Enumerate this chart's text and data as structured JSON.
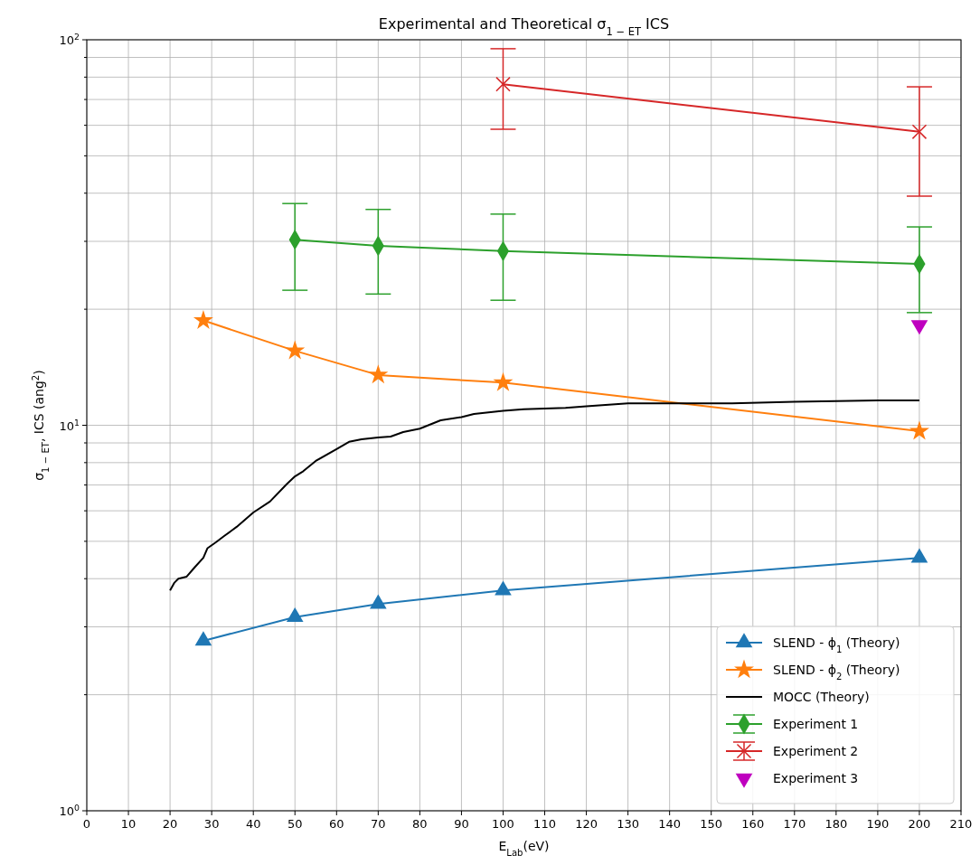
{
  "chart_data": {
    "type": "line",
    "title": "Experimental and Theoretical σ$_{1 − ET}$ ICS",
    "xlabel": "E$_{Lab}$(eV)",
    "ylabel": "σ$_{1 − ET}$, ICS (ang$^{2}$)",
    "log": "y",
    "grid": true,
    "legend": "bottom right",
    "line_style": "solid",
    "xlim": [
      0,
      210
    ],
    "xticks": [
      0,
      10,
      20,
      30,
      40,
      50,
      60,
      70,
      80,
      90,
      100,
      110,
      120,
      130,
      140,
      150,
      160,
      170,
      180,
      190,
      200,
      210
    ],
    "ylim": [
      1,
      100
    ],
    "yticks": [
      {
        "value": 1,
        "label": "10$^{0}$"
      },
      {
        "value": 2,
        "label": null
      },
      {
        "value": 3,
        "label": null
      },
      {
        "value": 4,
        "label": null
      },
      {
        "value": 5,
        "label": null
      },
      {
        "value": 6,
        "label": null
      },
      {
        "value": 7,
        "label": null
      },
      {
        "value": 8,
        "label": null
      },
      {
        "value": 9,
        "label": null
      },
      {
        "value": 10,
        "label": "10$^{1}$"
      },
      {
        "value": 20,
        "label": null
      },
      {
        "value": 30,
        "label": null
      },
      {
        "value": 40,
        "label": null
      },
      {
        "value": 50,
        "label": null
      },
      {
        "value": 60,
        "label": null
      },
      {
        "value": 70,
        "label": null
      },
      {
        "value": 80,
        "label": null
      },
      {
        "value": 90,
        "label": null
      },
      {
        "value": 100,
        "label": "10$^{2}$"
      }
    ],
    "series": [
      {
        "name": "SLEND - ϕ$_{1}$ (Theory)",
        "color": "#1f77b4",
        "marker": "triangle",
        "x": [
          28,
          50,
          70,
          100,
          200
        ],
        "values": [
          2.76,
          3.18,
          3.44,
          3.73,
          4.53
        ]
      },
      {
        "name": "SLEND - ϕ$_{2}$ (Theory)",
        "color": "#ff7f0e",
        "marker": "star",
        "x": [
          28,
          50,
          70,
          100,
          200
        ],
        "values": [
          18.7,
          15.6,
          13.5,
          12.9,
          9.65
        ]
      },
      {
        "name": "MOCC (Theory)",
        "color": "#000000",
        "marker": "none",
        "x": [
          20,
          21,
          22,
          24,
          26,
          28,
          29,
          31,
          33,
          36,
          40,
          44,
          48,
          50,
          52,
          55,
          60,
          63,
          66,
          70,
          73,
          76,
          80,
          85,
          90,
          93,
          100,
          105,
          115,
          120,
          130,
          140,
          155,
          170,
          190,
          200
        ],
        "values": [
          3.73,
          3.9,
          4.0,
          4.05,
          4.29,
          4.53,
          4.8,
          4.97,
          5.16,
          5.45,
          5.94,
          6.34,
          7.03,
          7.37,
          7.6,
          8.08,
          8.67,
          9.06,
          9.2,
          9.3,
          9.35,
          9.6,
          9.8,
          10.3,
          10.5,
          10.7,
          10.9,
          11.0,
          11.1,
          11.2,
          11.4,
          11.4,
          11.4,
          11.5,
          11.6,
          11.6
        ]
      },
      {
        "name": "Experiment 1",
        "color": "#2ca02c",
        "marker": "diamond",
        "x": [
          50,
          70,
          100,
          200
        ],
        "values": [
          30.3,
          29.2,
          28.3,
          26.2
        ],
        "errors": [
          [
            22.4,
            37.6
          ],
          [
            21.9,
            36.3
          ],
          [
            21.1,
            35.3
          ],
          [
            19.6,
            32.7
          ]
        ]
      },
      {
        "name": "Experiment 2",
        "color": "#d62728",
        "marker": "cross",
        "x": [
          100,
          200
        ],
        "values": [
          76.7,
          57.7
        ],
        "errors": [
          [
            58.6,
            94.8
          ],
          [
            39.3,
            75.5
          ]
        ]
      },
      {
        "name": "Experiment 3",
        "color": "#bf00bf",
        "marker": "triangle-down",
        "type": "scatter",
        "x": [
          200
        ],
        "values": [
          18.2
        ]
      }
    ]
  }
}
